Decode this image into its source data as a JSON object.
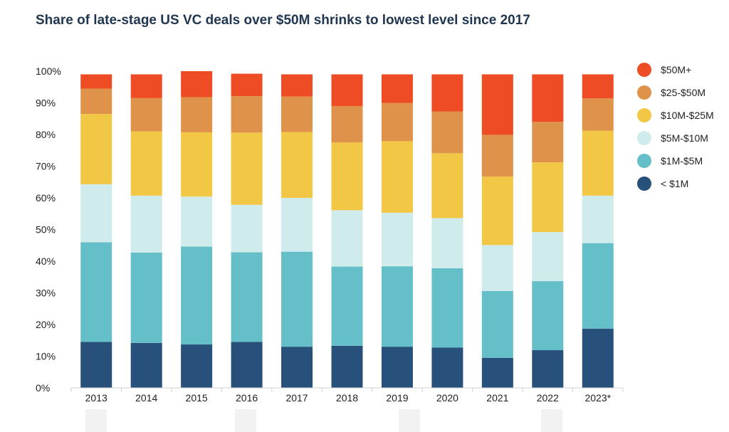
{
  "title": "Share of late-stage US VC deals over $50M shrinks to lowest level since 2017",
  "chart_data": {
    "type": "bar",
    "stacked": true,
    "title": "Share of late-stage US VC deals over $50M shrinks to lowest level since 2017",
    "xlabel": "",
    "ylabel": "",
    "ylim": [
      0,
      100
    ],
    "y_ticks": [
      "0%",
      "10%",
      "20%",
      "30%",
      "40%",
      "50%",
      "60%",
      "70%",
      "80%",
      "90%",
      "100%"
    ],
    "categories": [
      "2013",
      "2014",
      "2015",
      "2016",
      "2017",
      "2018",
      "2019",
      "2020",
      "2021",
      "2022",
      "2023*"
    ],
    "legend_position": "right",
    "grid": false,
    "series": [
      {
        "name": "< $1M",
        "color": "#27507a",
        "values": [
          14.5,
          14.2,
          13.7,
          14.5,
          13.0,
          13.3,
          13.0,
          12.7,
          9.5,
          11.9,
          18.7
        ]
      },
      {
        "name": "$1M-$5M",
        "color": "#65bfc8",
        "values": [
          31.5,
          28.5,
          30.9,
          28.3,
          30.0,
          25.0,
          25.4,
          25.1,
          21.1,
          21.8,
          27.0
        ]
      },
      {
        "name": "$5M-$10M",
        "color": "#cfebec",
        "values": [
          18.3,
          18.0,
          15.8,
          15.0,
          17.0,
          17.8,
          16.9,
          15.8,
          14.5,
          15.5,
          15.0
        ]
      },
      {
        "name": "$10M-$25M",
        "color": "#f2c745",
        "values": [
          22.2,
          20.3,
          20.3,
          22.8,
          20.8,
          21.4,
          22.6,
          20.5,
          21.6,
          22.0,
          20.5
        ]
      },
      {
        "name": "$25-$50M",
        "color": "#de924a",
        "values": [
          8.0,
          10.5,
          11.1,
          11.5,
          11.2,
          11.5,
          12.1,
          13.2,
          13.2,
          12.8,
          10.2
        ]
      },
      {
        "name": "$50M+",
        "color": "#ed4c24",
        "values": [
          4.5,
          7.5,
          8.2,
          7.1,
          7.0,
          10.0,
          9.0,
          11.7,
          19.1,
          15.0,
          7.6
        ]
      }
    ]
  },
  "legend_order": [
    "$50M+",
    "$25-$50M",
    "$10M-$25M",
    "$5M-$10M",
    "$1M-$5M",
    "< $1M"
  ]
}
